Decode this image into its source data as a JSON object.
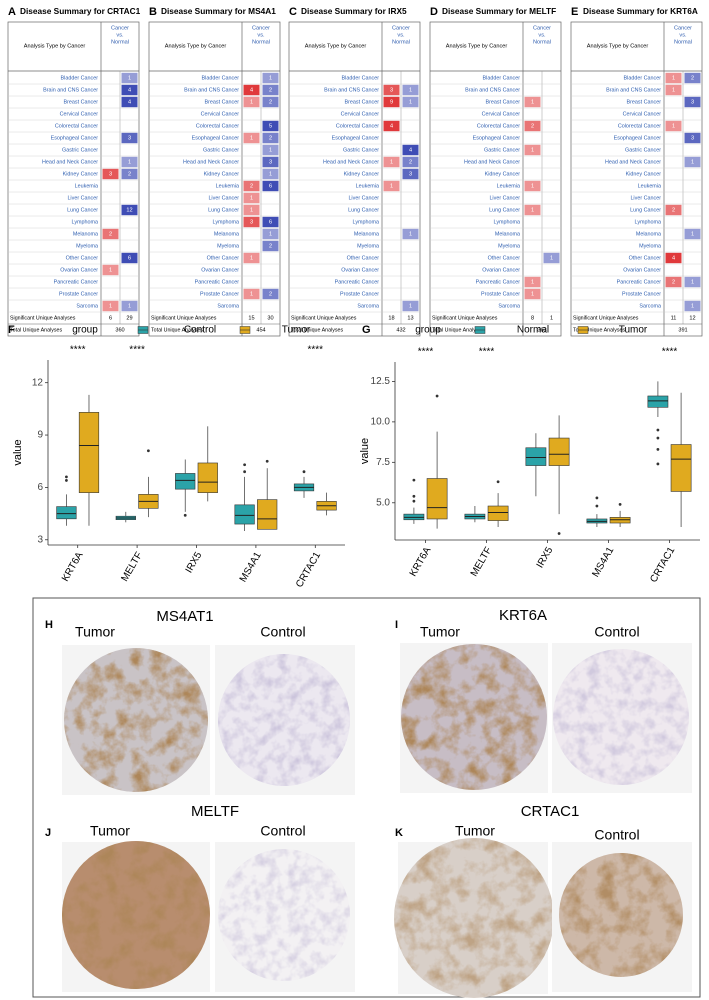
{
  "oncomine_labels": {
    "header_left": "Analysis Type by Cancer",
    "header_right": [
      "Cancer",
      "vs.",
      "Normal"
    ],
    "sig_label": "Significant Unique Analyses",
    "total_label": "Total Unique Analyses"
  },
  "cancers": [
    "Bladder Cancer",
    "Brain and CNS Cancer",
    "Breast Cancer",
    "Cervical Cancer",
    "Colorectal Cancer",
    "Esophageal Cancer",
    "Gastric Cancer",
    "Head and Neck Cancer",
    "Kidney Cancer",
    "Leukemia",
    "Liver Cancer",
    "Lung Cancer",
    "Lymphoma",
    "Melanoma",
    "Myeloma",
    "Other Cancer",
    "Ovarian Cancer",
    "Pancreatic Cancer",
    "Prostate Cancer",
    "Sarcoma"
  ],
  "oncomine": [
    {
      "panel": "A",
      "title": "Disease Summary for CRTAC1",
      "cells": [
        [
          null,
          1
        ],
        [
          null,
          4
        ],
        [
          null,
          4
        ],
        [
          null,
          null
        ],
        [
          null,
          null
        ],
        [
          null,
          3
        ],
        [
          null,
          null
        ],
        [
          null,
          1
        ],
        [
          3,
          2
        ],
        [
          null,
          null
        ],
        [
          null,
          null
        ],
        [
          null,
          12
        ],
        [
          null,
          null
        ],
        [
          2,
          null
        ],
        [
          null,
          null
        ],
        [
          null,
          6
        ],
        [
          1,
          null
        ],
        [
          null,
          null
        ],
        [
          null,
          null
        ],
        [
          1,
          1
        ]
      ],
      "sig": [
        6,
        29
      ],
      "total": 360
    },
    {
      "panel": "B",
      "title": "Disease Summary for MS4A1",
      "cells": [
        [
          null,
          1
        ],
        [
          4,
          2
        ],
        [
          1,
          2
        ],
        [
          null,
          null
        ],
        [
          null,
          5
        ],
        [
          1,
          2
        ],
        [
          null,
          1
        ],
        [
          null,
          3
        ],
        [
          null,
          1
        ],
        [
          2,
          6
        ],
        [
          1,
          null
        ],
        [
          1,
          null
        ],
        [
          3,
          6
        ],
        [
          null,
          1
        ],
        [
          null,
          2
        ],
        [
          1,
          null
        ],
        [
          null,
          null
        ],
        [
          null,
          null
        ],
        [
          1,
          2
        ],
        [
          null,
          null
        ]
      ],
      "sig": [
        15,
        30
      ],
      "total": 454
    },
    {
      "panel": "C",
      "title": "Disease Summary for IRX5",
      "cells": [
        [
          null,
          null
        ],
        [
          3,
          1
        ],
        [
          9,
          1
        ],
        [
          null,
          null
        ],
        [
          4,
          null
        ],
        [
          null,
          null
        ],
        [
          null,
          4
        ],
        [
          1,
          2
        ],
        [
          null,
          3
        ],
        [
          1,
          null
        ],
        [
          null,
          null
        ],
        [
          null,
          null
        ],
        [
          null,
          null
        ],
        [
          null,
          1
        ],
        [
          null,
          null
        ],
        [
          null,
          null
        ],
        [
          null,
          null
        ],
        [
          null,
          null
        ],
        [
          null,
          null
        ],
        [
          null,
          1
        ]
      ],
      "sig": [
        18,
        13
      ],
      "total": 432
    },
    {
      "panel": "D",
      "title": "Disease Summary for MELTF",
      "cells": [
        [
          null,
          null
        ],
        [
          null,
          null
        ],
        [
          1,
          null
        ],
        [
          null,
          null
        ],
        [
          2,
          null
        ],
        [
          null,
          null
        ],
        [
          1,
          null
        ],
        [
          null,
          null
        ],
        [
          null,
          null
        ],
        [
          1,
          null
        ],
        [
          null,
          null
        ],
        [
          1,
          null
        ],
        [
          null,
          null
        ],
        [
          null,
          null
        ],
        [
          null,
          null
        ],
        [
          null,
          1
        ],
        [
          null,
          null
        ],
        [
          1,
          null
        ],
        [
          1,
          null
        ],
        [
          null,
          null
        ]
      ],
      "sig": [
        8,
        1
      ],
      "total": 363
    },
    {
      "panel": "E",
      "title": "Disease Summary for KRT6A",
      "cells": [
        [
          1,
          2
        ],
        [
          1,
          null
        ],
        [
          null,
          3
        ],
        [
          null,
          null
        ],
        [
          1,
          null
        ],
        [
          null,
          3
        ],
        [
          null,
          null
        ],
        [
          null,
          1
        ],
        [
          null,
          null
        ],
        [
          null,
          null
        ],
        [
          null,
          null
        ],
        [
          2,
          null
        ],
        [
          null,
          null
        ],
        [
          null,
          1
        ],
        [
          null,
          null
        ],
        [
          4,
          null
        ],
        [
          null,
          null
        ],
        [
          2,
          1
        ],
        [
          null,
          null
        ],
        [
          null,
          1
        ]
      ],
      "sig": [
        11,
        12
      ],
      "total": 391
    }
  ],
  "chart_data": [
    {
      "type": "boxplot",
      "panel": "F",
      "legend_title": "group",
      "ylabel": "value",
      "categories": [
        "KRT6A",
        "MELTF",
        "IRX5",
        "MS4A1",
        "CRTAC1"
      ],
      "significance": [
        "****",
        "****",
        null,
        null,
        "****"
      ],
      "ylim": [
        2.7,
        13.3
      ],
      "yticks": [
        3,
        6,
        9,
        12
      ],
      "grid": false,
      "series": [
        {
          "name": "Control",
          "color": "#2ba3a8",
          "boxes": [
            {
              "low": 3.8,
              "q1": 4.2,
              "median": 4.5,
              "q3": 4.9,
              "high": 5.6,
              "outliers": [
                6.4,
                6.6
              ]
            },
            {
              "low": 4.0,
              "q1": 4.15,
              "median": 4.25,
              "q3": 4.35,
              "high": 4.6,
              "outliers": []
            },
            {
              "low": 4.6,
              "q1": 5.9,
              "median": 6.4,
              "q3": 6.8,
              "high": 7.6,
              "outliers": [
                4.4
              ]
            },
            {
              "low": 3.5,
              "q1": 3.9,
              "median": 4.4,
              "q3": 5.0,
              "high": 6.6,
              "outliers": [
                6.9,
                7.3
              ]
            },
            {
              "low": 5.4,
              "q1": 5.8,
              "median": 6.0,
              "q3": 6.2,
              "high": 6.6,
              "outliers": [
                6.9
              ]
            }
          ]
        },
        {
          "name": "Tumor",
          "color": "#e0aa1f",
          "boxes": [
            {
              "low": 3.8,
              "q1": 5.7,
              "median": 8.4,
              "q3": 10.3,
              "high": 11.3,
              "outliers": []
            },
            {
              "low": 4.3,
              "q1": 4.8,
              "median": 5.2,
              "q3": 5.6,
              "high": 6.6,
              "outliers": [
                8.1
              ]
            },
            {
              "low": 5.2,
              "q1": 5.7,
              "median": 6.3,
              "q3": 7.4,
              "high": 9.5,
              "outliers": []
            },
            {
              "low": 3.6,
              "q1": 3.6,
              "median": 4.2,
              "q3": 5.3,
              "high": 7.1,
              "outliers": [
                7.5
              ]
            },
            {
              "low": 4.4,
              "q1": 4.7,
              "median": 4.95,
              "q3": 5.2,
              "high": 5.7,
              "outliers": []
            }
          ]
        }
      ]
    },
    {
      "type": "boxplot",
      "panel": "G",
      "legend_title": "group",
      "ylabel": "value",
      "categories": [
        "KRT6A",
        "MELTF",
        "IRX5",
        "MS4A1",
        "CRTAC1"
      ],
      "significance": [
        "****",
        "****",
        null,
        null,
        "****"
      ],
      "ylim": [
        2.7,
        13.7
      ],
      "yticks": [
        {
          "value": 5,
          "label": "5.0"
        },
        {
          "value": 7.5,
          "label": "7.5"
        },
        {
          "value": 10,
          "label": "10.0"
        },
        {
          "value": 12.5,
          "label": "12.5"
        }
      ],
      "grid": false,
      "series": [
        {
          "name": "Normal",
          "color": "#2ba3a8",
          "boxes": [
            {
              "low": 3.7,
              "q1": 3.95,
              "median": 4.1,
              "q3": 4.3,
              "high": 4.7,
              "outliers": [
                5.1,
                5.4,
                6.4
              ]
            },
            {
              "low": 3.8,
              "q1": 4.0,
              "median": 4.15,
              "q3": 4.3,
              "high": 4.8,
              "outliers": []
            },
            {
              "low": 5.4,
              "q1": 7.3,
              "median": 7.8,
              "q3": 8.4,
              "high": 9.3,
              "outliers": []
            },
            {
              "low": 3.5,
              "q1": 3.75,
              "median": 3.85,
              "q3": 4.0,
              "high": 4.3,
              "outliers": [
                4.8,
                5.3
              ]
            },
            {
              "low": 10.3,
              "q1": 10.9,
              "median": 11.3,
              "q3": 11.6,
              "high": 12.5,
              "outliers": [
                9.5,
                9.0,
                8.3,
                7.4
              ]
            }
          ]
        },
        {
          "name": "Tumor",
          "color": "#e0aa1f",
          "boxes": [
            {
              "low": 3.4,
              "q1": 4.0,
              "median": 4.7,
              "q3": 6.5,
              "high": 9.4,
              "outliers": [
                11.6
              ]
            },
            {
              "low": 3.5,
              "q1": 3.9,
              "median": 4.4,
              "q3": 4.8,
              "high": 5.6,
              "outliers": [
                6.3
              ]
            },
            {
              "low": 4.3,
              "q1": 7.3,
              "median": 8.0,
              "q3": 9.0,
              "high": 10.4,
              "outliers": [
                3.1
              ]
            },
            {
              "low": 3.5,
              "q1": 3.75,
              "median": 3.95,
              "q3": 4.1,
              "high": 4.5,
              "outliers": [
                4.9
              ]
            },
            {
              "low": 3.5,
              "q1": 5.7,
              "median": 7.7,
              "q3": 8.6,
              "high": 11.8,
              "outliers": []
            }
          ]
        }
      ]
    }
  ],
  "ihc": [
    {
      "panel": "H",
      "title": "MS4AT1",
      "left": "Tumor",
      "right": "Control"
    },
    {
      "panel": "I",
      "title": "KRT6A",
      "left": "Tumor",
      "right": "Control"
    },
    {
      "panel": "J",
      "title": "MELTF",
      "left": "Tumor",
      "right": "Control"
    },
    {
      "panel": "K",
      "title": "CRTAC1",
      "left": "Tumor",
      "right": "Control"
    }
  ]
}
